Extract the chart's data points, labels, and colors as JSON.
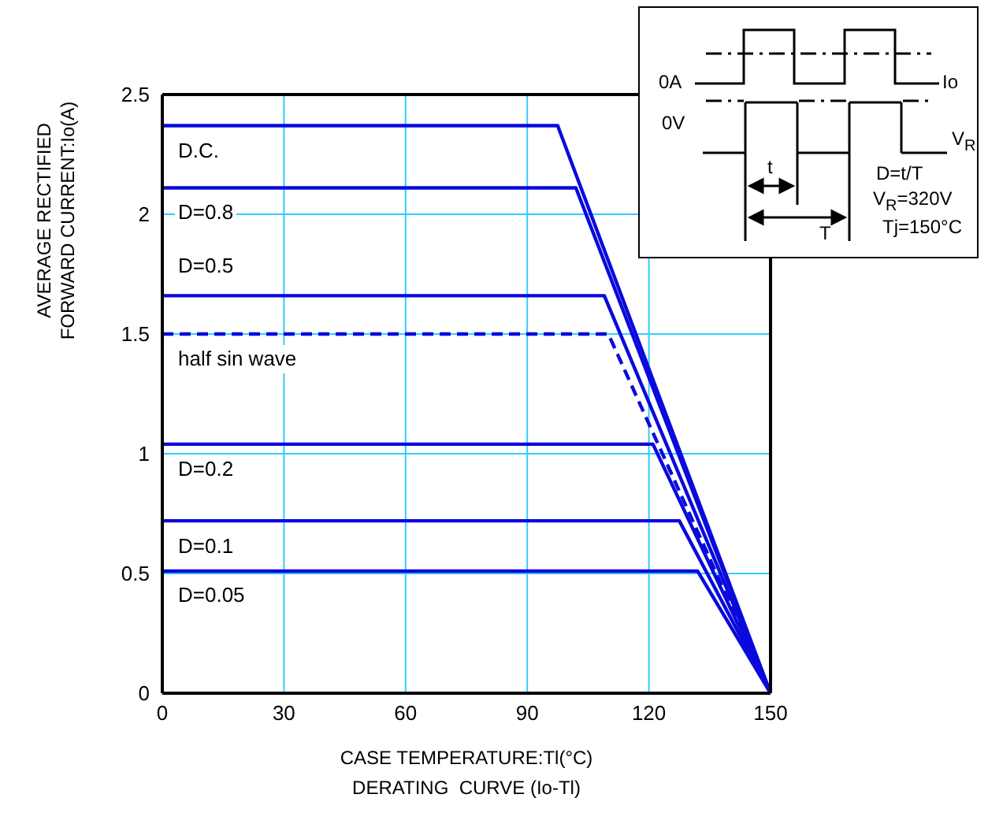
{
  "chart_data": {
    "type": "line",
    "xlabel": "CASE TEMPERATURE:Tl(°C)",
    "ylabel": "AVERAGE RECTIFIED\nFORWARD CURRENT:Io(A)",
    "xlim": [
      0,
      150
    ],
    "xticks": [
      0,
      30,
      60,
      90,
      120,
      150
    ],
    "ylim": [
      0,
      2.5
    ],
    "yticks": [
      0,
      0.5,
      1,
      1.5,
      2,
      2.5
    ],
    "grid": true,
    "legend": false,
    "marker": "none",
    "series": [
      {
        "name": "D.C.",
        "color": "#0a0adc",
        "x": [
          0,
          97.5,
          150
        ],
        "values": [
          2.37,
          2.37,
          0
        ]
      },
      {
        "name": "D=0.8",
        "color": "#0a0adc",
        "x": [
          0,
          102,
          150
        ],
        "values": [
          2.11,
          2.11,
          0
        ]
      },
      {
        "name": "D=0.5",
        "color": "#0a0adc",
        "x": [
          0,
          109,
          150
        ],
        "values": [
          1.66,
          1.66,
          0
        ]
      },
      {
        "name": "half sin wave",
        "color": "#0a0adc",
        "line_style": "dashed",
        "x": [
          0,
          110,
          150
        ],
        "values": [
          1.5,
          1.5,
          0
        ]
      },
      {
        "name": "D=0.2",
        "color": "#0a0adc",
        "x": [
          0,
          121,
          150
        ],
        "values": [
          1.04,
          1.04,
          0
        ]
      },
      {
        "name": "D=0.1",
        "color": "#0a0adc",
        "x": [
          0,
          127.5,
          150
        ],
        "values": [
          0.72,
          0.72,
          0
        ]
      },
      {
        "name": "D=0.05",
        "color": "#0a0adc",
        "x": [
          0,
          132,
          150
        ],
        "values": [
          0.51,
          0.51,
          0
        ]
      }
    ],
    "annotations": [
      "0A",
      "Io",
      "0V",
      "V$_{R}$",
      "t",
      "T",
      "D=t/T",
      "V$_{R}$=320V",
      "Tj=150°C",
      "DERATING  CURVE (Io-Tl)"
    ]
  }
}
